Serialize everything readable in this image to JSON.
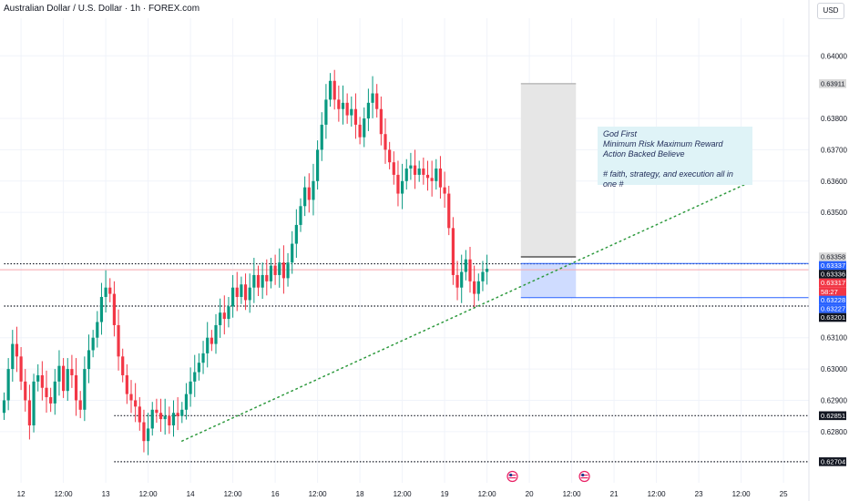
{
  "header": {
    "symbol_title": "Australian Dollar / U.S. Dollar · 1h · FOREX.com",
    "currency": "USD"
  },
  "note": {
    "lines": [
      "God First",
      "Minimum Risk Maximum Reward",
      "Action Backed Believe",
      "",
      "# faith, strategy, and execution all in",
      "one #"
    ]
  },
  "colors": {
    "bull": "#089981",
    "bear": "#f23645",
    "trendline": "#2e9a3e",
    "level_line": "#131722",
    "position_line": "#2962ff",
    "target_zone": "#e6e6e6",
    "stop_zone": "#cfdcff"
  },
  "chart_data": {
    "type": "candlestick",
    "symbol": "AUDUSD",
    "timeframe": "1h",
    "ylim": [
      0.6266,
      0.6412
    ],
    "y_ticks": [
      "0.64000",
      "0.63800",
      "0.63700",
      "0.63600",
      "0.63500",
      "0.63100",
      "0.63000",
      "0.62900",
      "0.62800"
    ],
    "x_ticks": [
      {
        "label": "12",
        "i": 4
      },
      {
        "label": "12:00",
        "i": 14
      },
      {
        "label": "13",
        "i": 24
      },
      {
        "label": "12:00",
        "i": 34
      },
      {
        "label": "14",
        "i": 44
      },
      {
        "label": "12:00",
        "i": 54
      },
      {
        "label": "16",
        "i": 64
      },
      {
        "label": "12:00",
        "i": 74
      },
      {
        "label": "18",
        "i": 84
      },
      {
        "label": "12:00",
        "i": 94
      },
      {
        "label": "19",
        "i": 104
      },
      {
        "label": "12:00",
        "i": 114
      },
      {
        "label": "20",
        "i": 124
      },
      {
        "label": "12:00",
        "i": 134
      },
      {
        "label": "21",
        "i": 144
      },
      {
        "label": "12:00",
        "i": 154
      },
      {
        "label": "23",
        "i": 164
      },
      {
        "label": "12:00",
        "i": 174
      },
      {
        "label": "25",
        "i": 184
      }
    ],
    "closes": [
      0.629,
      0.63,
      0.6308,
      0.6304,
      0.6296,
      0.629,
      0.6282,
      0.6296,
      0.6298,
      0.6294,
      0.6291,
      0.6289,
      0.6296,
      0.6301,
      0.6293,
      0.63,
      0.6298,
      0.629,
      0.6287,
      0.63,
      0.6306,
      0.631,
      0.6315,
      0.6323,
      0.6326,
      0.6324,
      0.6314,
      0.6304,
      0.6298,
      0.6292,
      0.629,
      0.6288,
      0.6283,
      0.6277,
      0.6281,
      0.6287,
      0.6286,
      0.6284,
      0.6285,
      0.6282,
      0.6286,
      0.6285,
      0.6287,
      0.6292,
      0.6296,
      0.6299,
      0.6302,
      0.6305,
      0.631,
      0.6308,
      0.6314,
      0.6318,
      0.6316,
      0.632,
      0.6326,
      0.6323,
      0.6327,
      0.6322,
      0.6326,
      0.633,
      0.6326,
      0.633,
      0.6328,
      0.6333,
      0.633,
      0.6334,
      0.6329,
      0.6334,
      0.634,
      0.6346,
      0.6352,
      0.6358,
      0.6354,
      0.636,
      0.637,
      0.6378,
      0.6386,
      0.6392,
      0.6386,
      0.6383,
      0.6385,
      0.6381,
      0.6383,
      0.6378,
      0.6374,
      0.638,
      0.6385,
      0.6388,
      0.6383,
      0.6375,
      0.637,
      0.6366,
      0.6362,
      0.6356,
      0.636,
      0.6364,
      0.6365,
      0.6362,
      0.6364,
      0.6362,
      0.6361,
      0.636,
      0.6364,
      0.6358,
      0.6356,
      0.6345,
      0.633,
      0.6326,
      0.6331,
      0.6335,
      0.6328,
      0.6324,
      0.6328,
      0.6331,
      0.6332
    ],
    "last_price": 0.63317,
    "countdown": "58:27",
    "price_labels": [
      {
        "value": "0.63911",
        "style": "gray"
      },
      {
        "value": "0.63358",
        "style": "gray"
      },
      {
        "value": "0.63337",
        "style": "blue"
      },
      {
        "value": "0.63336",
        "style": "black"
      },
      {
        "value": "0.63317",
        "style": "red"
      },
      {
        "value": "0.63228",
        "style": "blue"
      },
      {
        "value": "0.63227",
        "style": "blue"
      },
      {
        "value": "0.63201",
        "style": "black"
      },
      {
        "value": "0.62851",
        "style": "black"
      },
      {
        "value": "0.62704",
        "style": "black"
      }
    ],
    "horizontal_levels": [
      {
        "price": 0.63336,
        "from_i": 0
      },
      {
        "price": 0.63201,
        "from_i": 0
      },
      {
        "price": 0.62851,
        "from_i": 26
      },
      {
        "price": 0.62704,
        "from_i": 26
      }
    ],
    "trendline": {
      "from": {
        "i": 42,
        "price": 0.6277
      },
      "to": {
        "i": 175,
        "price": 0.6359
      }
    },
    "position": {
      "from_i": 122,
      "to_i": 135,
      "target": 0.63911,
      "entry_top": 0.63358,
      "entry": 0.63337,
      "stop": 0.63228
    },
    "event_markers": [
      {
        "i": 120
      },
      {
        "i": 137
      }
    ]
  }
}
